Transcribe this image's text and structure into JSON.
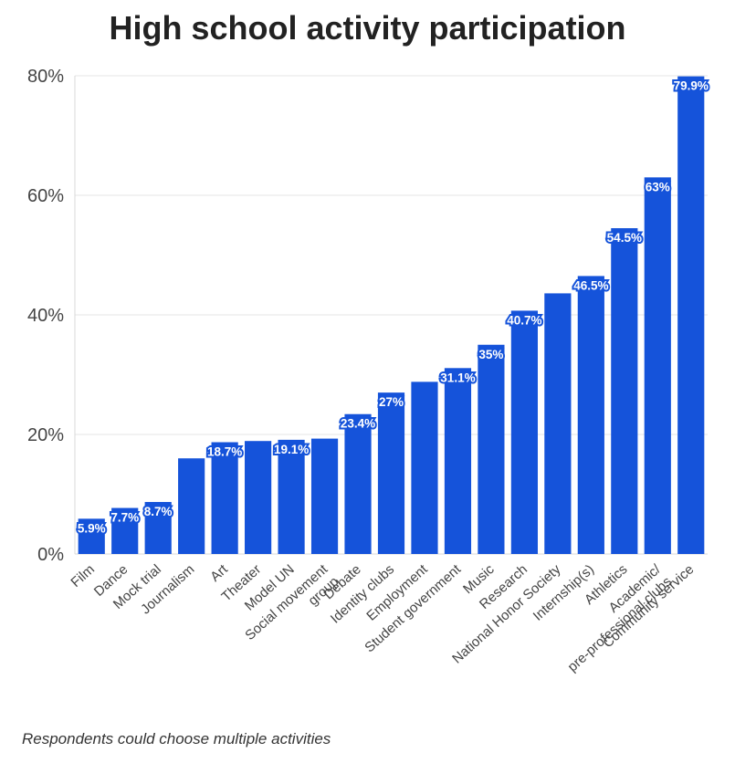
{
  "chart_data": {
    "type": "bar",
    "title": "High school activity participation",
    "footnote": "Respondents could choose multiple activities",
    "xlabel": "",
    "ylabel": "",
    "ylim": [
      0,
      80
    ],
    "yticks": [
      0,
      20,
      40,
      60,
      80
    ],
    "ytick_labels": [
      "0%",
      "20%",
      "40%",
      "60%",
      "80%"
    ],
    "grid": true,
    "bar_color": "#1553DA",
    "categories": [
      "Film",
      "Dance",
      "Mock trial",
      "Journalism",
      "Art",
      "Theater",
      "Model UN",
      "Social movement group",
      "Debate",
      "Identity clubs",
      "Employment",
      "Student government",
      "Music",
      "Research",
      "National Honor Society",
      "Internship(s)",
      "Athletics",
      "Academic/ pre-professional clubs",
      "Community service"
    ],
    "values": [
      5.9,
      7.7,
      8.7,
      16,
      18.7,
      18.9,
      19.1,
      19.3,
      23.4,
      27,
      28.8,
      31.1,
      35,
      40.7,
      43.6,
      46.5,
      54.5,
      63,
      79.9
    ],
    "data_labels": [
      "5.9%",
      "7.7%",
      "8.7%",
      "",
      "18.7%",
      "",
      "19.1%",
      "",
      "23.4%",
      "27%",
      "",
      "31.1%",
      "35%",
      "40.7%",
      "",
      "46.5%",
      "54.5%",
      "63%",
      "79.9%"
    ]
  }
}
